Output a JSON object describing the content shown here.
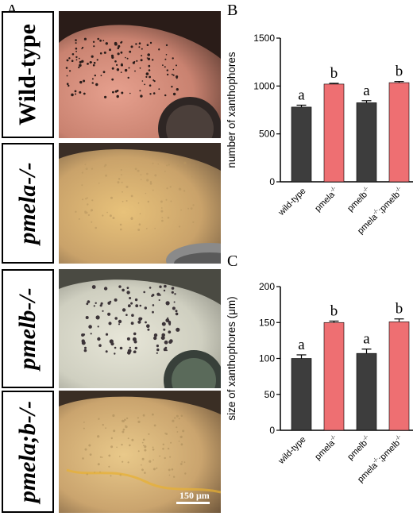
{
  "panel_labels": {
    "a": "A",
    "b": "B",
    "c": "C"
  },
  "genotype_labels": [
    {
      "text": "Wild-type",
      "italic": false
    },
    {
      "text": "pmela-/-",
      "italic": true
    },
    {
      "text": "pmelb-/-",
      "italic": true
    },
    {
      "text": "pmela;b-/-",
      "italic": true
    }
  ],
  "scale_bar": "150 μm",
  "colors": {
    "wild_type_bar": "#3d3d3d",
    "mutant_bar": "#ee6f72",
    "axis": "#000000"
  },
  "chart_data": [
    {
      "type": "bar",
      "categories": [
        "wild-type",
        "pmela-/-",
        "pmelb-/-",
        "pmela-/-;pmelb-/-"
      ],
      "values": [
        780,
        1020,
        825,
        1035
      ],
      "errors": [
        20,
        8,
        22,
        12
      ],
      "significance": [
        "a",
        "b",
        "a",
        "b"
      ],
      "ylabel": "number of xanthophores",
      "ylim": [
        0,
        1500
      ],
      "yticks": [
        0,
        500,
        1000,
        1500
      ]
    },
    {
      "type": "bar",
      "categories": [
        "wild-type",
        "pmela-/-",
        "pmelb-/-",
        "pmela-/-;pmelb-/-"
      ],
      "values": [
        100,
        150,
        107,
        151
      ],
      "errors": [
        5,
        2,
        6,
        4
      ],
      "significance": [
        "a",
        "b",
        "a",
        "b"
      ],
      "ylabel": "size of xanthophores (μm)",
      "ylim": [
        0,
        200
      ],
      "yticks": [
        0,
        50,
        100,
        150,
        200
      ]
    }
  ]
}
